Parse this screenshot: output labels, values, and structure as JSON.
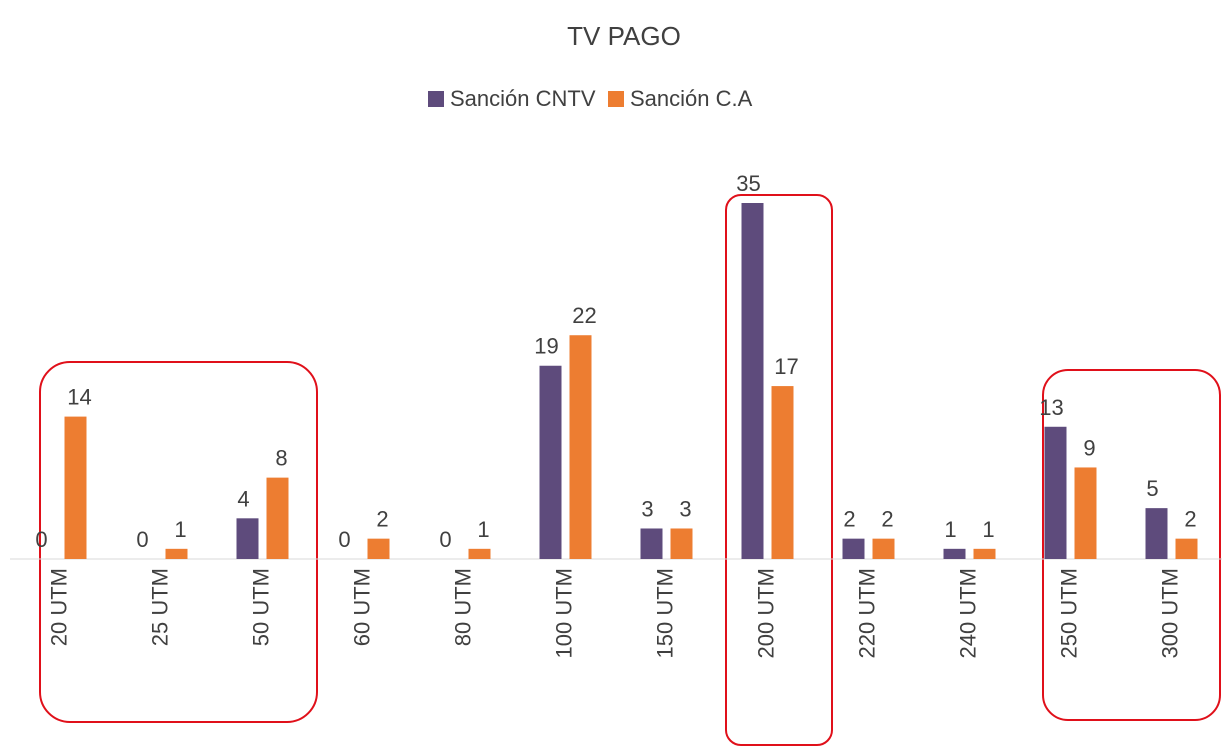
{
  "chart_data": {
    "type": "bar",
    "title": "TV PAGO",
    "categories": [
      "20 UTM",
      "25 UTM",
      "50 UTM",
      "60 UTM",
      "80 UTM",
      "100 UTM",
      "150 UTM",
      "200 UTM",
      "220 UTM",
      "240 UTM",
      "250 UTM",
      "300 UTM"
    ],
    "series": [
      {
        "name": "Sanción CNTV",
        "color": "#5e4b7c",
        "values": [
          0,
          0,
          4,
          0,
          0,
          19,
          3,
          35,
          2,
          1,
          13,
          5
        ]
      },
      {
        "name": "Sanción C.A",
        "color": "#ed7d31",
        "values": [
          14,
          1,
          8,
          2,
          1,
          22,
          3,
          17,
          2,
          1,
          9,
          2
        ]
      }
    ],
    "legend": "top"
  }
}
